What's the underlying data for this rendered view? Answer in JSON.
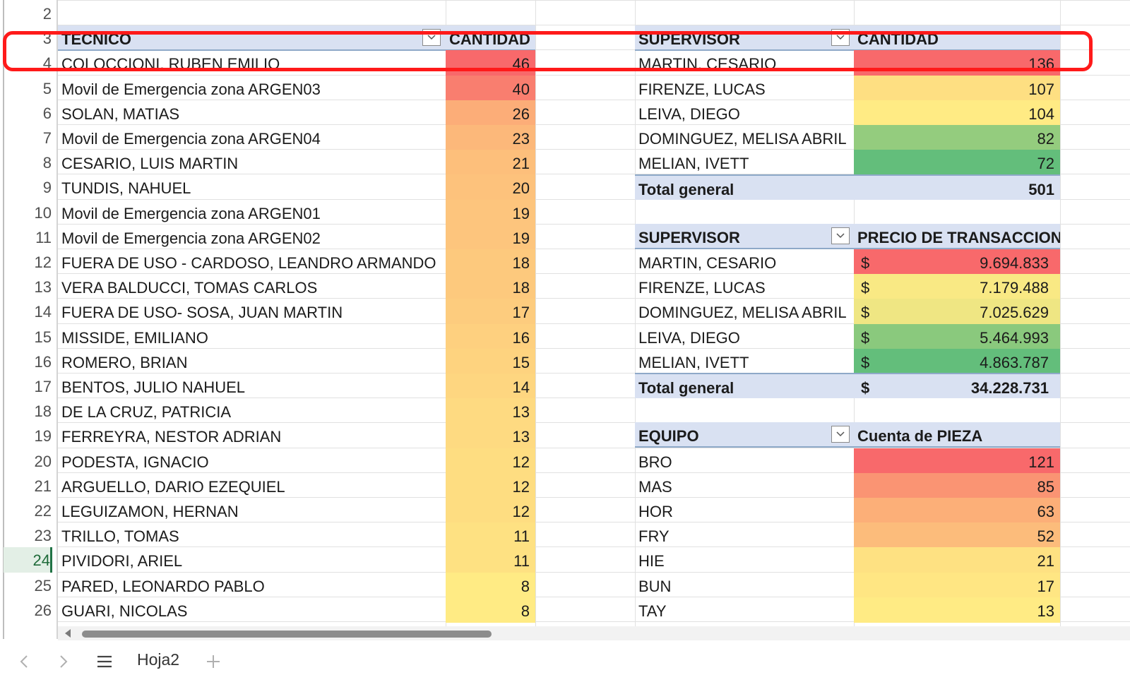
{
  "row_numbers": [
    "2",
    "3",
    "4",
    "5",
    "6",
    "7",
    "8",
    "9",
    "10",
    "11",
    "12",
    "13",
    "14",
    "15",
    "16",
    "17",
    "18",
    "19",
    "20",
    "21",
    "22",
    "23",
    "24",
    "25",
    "26"
  ],
  "active_row": "24",
  "tecnico_table": {
    "header_label": "TECNICO",
    "value_header": "CANTIDAD",
    "rows": [
      {
        "name": "COLOCCIONI, RUBEN EMILIO",
        "value": "46"
      },
      {
        "name": "Movil de Emergencia zona ARGEN03",
        "value": "40"
      },
      {
        "name": "SOLAN, MATIAS",
        "value": "26"
      },
      {
        "name": "Movil de Emergencia zona ARGEN04",
        "value": "23"
      },
      {
        "name": "CESARIO, LUIS MARTIN",
        "value": "21"
      },
      {
        "name": "TUNDIS, NAHUEL",
        "value": "20"
      },
      {
        "name": "Movil de Emergencia zona ARGEN01",
        "value": "19"
      },
      {
        "name": "Movil de Emergencia zona ARGEN02",
        "value": "19"
      },
      {
        "name": "FUERA DE USO - CARDOSO, LEANDRO ARMANDO",
        "value": "18"
      },
      {
        "name": "VERA BALDUCCI, TOMAS CARLOS",
        "value": "18"
      },
      {
        "name": "FUERA DE USO- SOSA, JUAN MARTIN",
        "value": "17"
      },
      {
        "name": "MISSIDE, EMILIANO",
        "value": "16"
      },
      {
        "name": "ROMERO, BRIAN",
        "value": "15"
      },
      {
        "name": "BENTOS, JULIO NAHUEL",
        "value": "14"
      },
      {
        "name": "DE LA CRUZ, PATRICIA",
        "value": "13"
      },
      {
        "name": "FERREYRA, NESTOR ADRIAN",
        "value": "13"
      },
      {
        "name": "PODESTA, IGNACIO",
        "value": "12"
      },
      {
        "name": "ARGUELLO, DARIO EZEQUIEL",
        "value": "12"
      },
      {
        "name": "LEGUIZAMON, HERNAN",
        "value": "12"
      },
      {
        "name": "TRILLO, TOMAS",
        "value": "11"
      },
      {
        "name": "PIVIDORI, ARIEL",
        "value": "11"
      },
      {
        "name": "PARED, LEONARDO PABLO",
        "value": "8"
      },
      {
        "name": "GUARI, NICOLAS",
        "value": "8"
      }
    ]
  },
  "supervisor_cantidad_table": {
    "header_label": "SUPERVISOR",
    "value_header": "CANTIDAD",
    "rows": [
      {
        "name": "MARTIN, CESARIO",
        "value": "136"
      },
      {
        "name": "FIRENZE, LUCAS",
        "value": "107"
      },
      {
        "name": "LEIVA, DIEGO",
        "value": "104"
      },
      {
        "name": "DOMINGUEZ, MELISA ABRIL",
        "value": "82"
      },
      {
        "name": "MELIAN, IVETT",
        "value": "72"
      }
    ],
    "total_label": "Total general",
    "total_value": "501"
  },
  "supervisor_precio_table": {
    "header_label": "SUPERVISOR",
    "value_header": "PRECIO DE TRANSACCION",
    "currency_symbol": "$",
    "rows": [
      {
        "name": "MARTIN, CESARIO",
        "value": "9.694.833"
      },
      {
        "name": "FIRENZE, LUCAS",
        "value": "7.179.488"
      },
      {
        "name": "DOMINGUEZ, MELISA ABRIL",
        "value": "7.025.629"
      },
      {
        "name": "LEIVA, DIEGO",
        "value": "5.464.993"
      },
      {
        "name": "MELIAN, IVETT",
        "value": "4.863.787"
      }
    ],
    "total_label": "Total general",
    "total_value": "34.228.731"
  },
  "equipo_table": {
    "header_label": "EQUIPO",
    "value_header": "Cuenta de PIEZA",
    "rows": [
      {
        "name": "BRO",
        "value": "121"
      },
      {
        "name": "MAS",
        "value": "85"
      },
      {
        "name": "HOR",
        "value": "63"
      },
      {
        "name": "FRY",
        "value": "52"
      },
      {
        "name": "HIE",
        "value": "21"
      },
      {
        "name": "BUN",
        "value": "17"
      },
      {
        "name": "TAY",
        "value": "13"
      }
    ]
  },
  "sheet_tab": {
    "name": "Hoja2"
  },
  "colors": {
    "header_fill": "#d9e1f2",
    "highlight_border": "#ff1a1a",
    "scale_red": "#f8696b",
    "scale_yellow": "#ffeb84",
    "scale_green": "#63be7b"
  },
  "icons": [
    "chevron-down-icon",
    "scroll-left-arrow-icon",
    "prev-sheet-icon",
    "next-sheet-icon",
    "sheet-menu-icon",
    "add-sheet-icon"
  ]
}
